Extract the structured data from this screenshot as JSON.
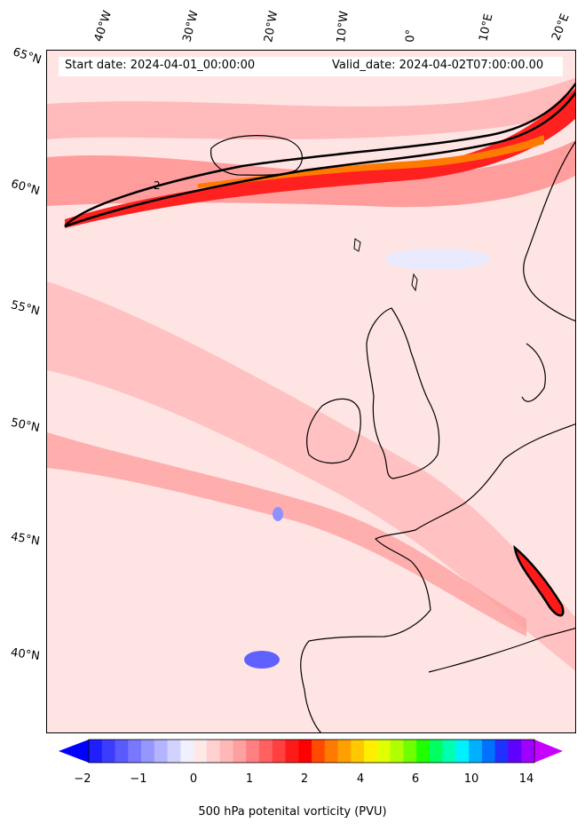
{
  "header": {
    "start_date": "Start date: 2024-04-01_00:00:00",
    "valid_date": "Valid_date: 2024-04-02T07:00:00.00"
  },
  "longitude_labels": [
    "40°W",
    "30°W",
    "20°W",
    "10°W",
    "0°",
    "10°E",
    "20°E"
  ],
  "latitude_labels": [
    "65°N",
    "60°N",
    "55°N",
    "50°N",
    "45°N",
    "40°N"
  ],
  "contour_label": "2",
  "colorbar": {
    "label": "500 hPa potenital vorticity (PVU)",
    "ticks": [
      "−2",
      "−1",
      "0",
      "1",
      "2",
      "4",
      "6",
      "10",
      "14"
    ],
    "colors": [
      "#1e1eff",
      "#3c3cff",
      "#5a5aff",
      "#7878ff",
      "#9696ff",
      "#b4b4ff",
      "#d2d2ff",
      "#f0f0ff",
      "#ffe8e8",
      "#ffd0d0",
      "#ffb8b8",
      "#ffa0a0",
      "#ff8080",
      "#ff6060",
      "#ff4040",
      "#ff1a1a",
      "#ff0000",
      "#ff4a00",
      "#ff7a00",
      "#ffa000",
      "#ffc800",
      "#ffee00",
      "#e0ff00",
      "#b0ff00",
      "#70ff00",
      "#20ff00",
      "#00ff60",
      "#00ffb0",
      "#00f0ff",
      "#00b0ff",
      "#0070ff",
      "#2030ff",
      "#6000ff",
      "#a000ff"
    ],
    "under_color": "#0000ff",
    "over_color": "#c800ff"
  }
}
